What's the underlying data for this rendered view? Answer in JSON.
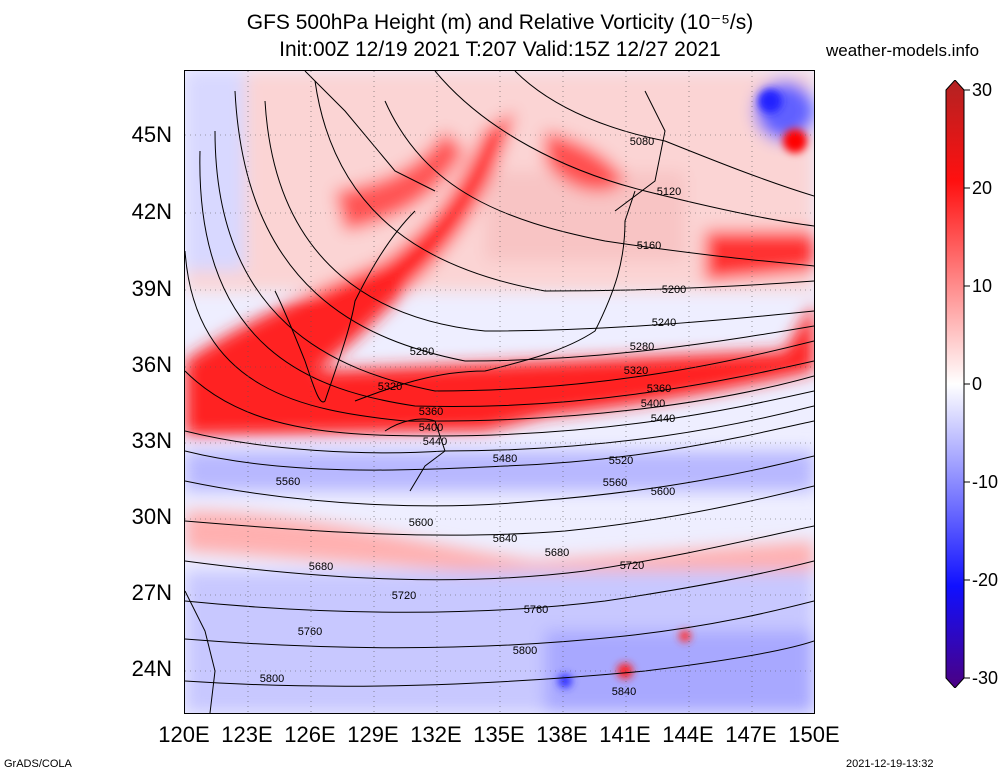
{
  "header": {
    "title_line1": "GFS 500hPa Height (m) and Relative Vorticity (10⁻⁵/s)",
    "title_line2": "Init:00Z 12/19 2021 T:207 Valid:15Z 12/27 2021",
    "site": "weather-models.info"
  },
  "axes": {
    "lat_labels": [
      "45N",
      "42N",
      "39N",
      "36N",
      "33N",
      "30N",
      "27N",
      "24N"
    ],
    "lon_labels": [
      "120E",
      "123E",
      "126E",
      "129E",
      "132E",
      "135E",
      "138E",
      "141E",
      "144E",
      "147E",
      "150E"
    ]
  },
  "colorbar": {
    "labels": [
      "30",
      "20",
      "10",
      "0",
      "-10",
      "-20",
      "-30"
    ],
    "colors": [
      "#b22222",
      "#ff1010",
      "#ff8888",
      "#ffffff",
      "#8888ff",
      "#1010ff",
      "#4b0082"
    ]
  },
  "contour_labels": [
    "5080",
    "5120",
    "5160",
    "5200",
    "5240",
    "5280",
    "5280",
    "5320",
    "5320",
    "5360",
    "5360",
    "5400",
    "5400",
    "5440",
    "5440",
    "5480",
    "5520",
    "5560",
    "5560",
    "5600",
    "5600",
    "5640",
    "5680",
    "5680",
    "5720",
    "5720",
    "5760",
    "5760",
    "5800",
    "5800",
    "5840"
  ],
  "footer": {
    "left": "GrADS/COLA",
    "right": "2021-12-19-13:32"
  }
}
